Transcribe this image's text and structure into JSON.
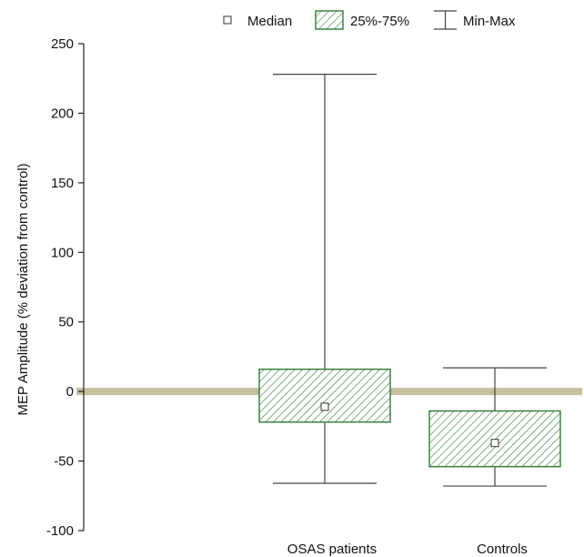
{
  "chart_data": {
    "type": "box",
    "title": "",
    "xlabel": "",
    "ylabel": "MEP Amplitude (% deviation from control)",
    "ylim": [
      -100,
      250
    ],
    "yticks": [
      -100,
      -50,
      0,
      50,
      100,
      150,
      200,
      250
    ],
    "reference_line": {
      "y": 0,
      "color": "#c8bf9f"
    },
    "legend": {
      "position": "top",
      "entries": [
        {
          "label": "Median",
          "symbol": "square"
        },
        {
          "label": "25%-75%",
          "symbol": "hatched-box"
        },
        {
          "label": "Min-Max",
          "symbol": "whisker"
        }
      ]
    },
    "categories": [
      "OSAS patients",
      "Controls"
    ],
    "boxes": [
      {
        "category": "OSAS patients",
        "min": -66,
        "q1": -22,
        "median": -11,
        "q3": 16,
        "max": 228
      },
      {
        "category": "Controls",
        "min": -68,
        "q1": -54,
        "median": -37,
        "q3": -14,
        "max": 17
      }
    ],
    "colors": {
      "box_stroke": "#2e7d32",
      "hatch": "#2e7d32",
      "whisker": "#444444",
      "reference": "#c8bf9f"
    }
  }
}
